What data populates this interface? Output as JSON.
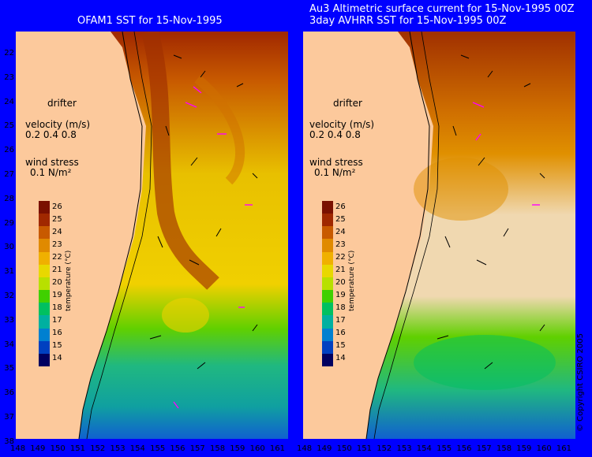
{
  "left_panel": {
    "title": "OFAM1 SST for 15-Nov-1995"
  },
  "right_panel": {
    "title_line1": "Au3 Altimetric surface current for 15-Nov-1995 00Z",
    "title_line2": "3day AVHRR SST for 15-Nov-1995 00Z"
  },
  "legend": {
    "drifter": "drifter",
    "velocity_label": "velocity (m/s)",
    "velocity_values": "0.2 0.4 0.8",
    "wind_label": "wind stress",
    "wind_value": "0.1 N/m²",
    "colorbar_title": "temperature (°C)",
    "colorbar_ticks": [
      "26",
      "25",
      "24",
      "23",
      "22",
      "21",
      "20",
      "19",
      "18",
      "17",
      "16",
      "15",
      "14"
    ]
  },
  "axes": {
    "latitude_ticks": [
      "22",
      "23",
      "24",
      "25",
      "26",
      "27",
      "28",
      "29",
      "30",
      "31",
      "32",
      "33",
      "34",
      "35",
      "36",
      "37",
      "38"
    ],
    "longitude_ticks_left": [
      "148",
      "149",
      "150",
      "151",
      "152",
      "153",
      "154",
      "155",
      "156",
      "157",
      "158",
      "159",
      "160",
      "161"
    ],
    "longitude_ticks_right": [
      "148",
      "149",
      "150",
      "151",
      "152",
      "153",
      "154",
      "155",
      "156",
      "157",
      "158",
      "159",
      "160",
      "161"
    ]
  },
  "copyright": "© Copyright CSIRO 2005",
  "colors": {
    "background": "#0000ff",
    "land": "#fcc99c",
    "arrow": "#000000",
    "wind_arrow": "#ff00ff"
  },
  "colorbar_colors": [
    "#7a1000",
    "#a02800",
    "#c85a00",
    "#e08a00",
    "#f0b000",
    "#e8d800",
    "#b8e000",
    "#40d000",
    "#00c060",
    "#00b0a0",
    "#0080d0",
    "#0040c0",
    "#000060"
  ]
}
